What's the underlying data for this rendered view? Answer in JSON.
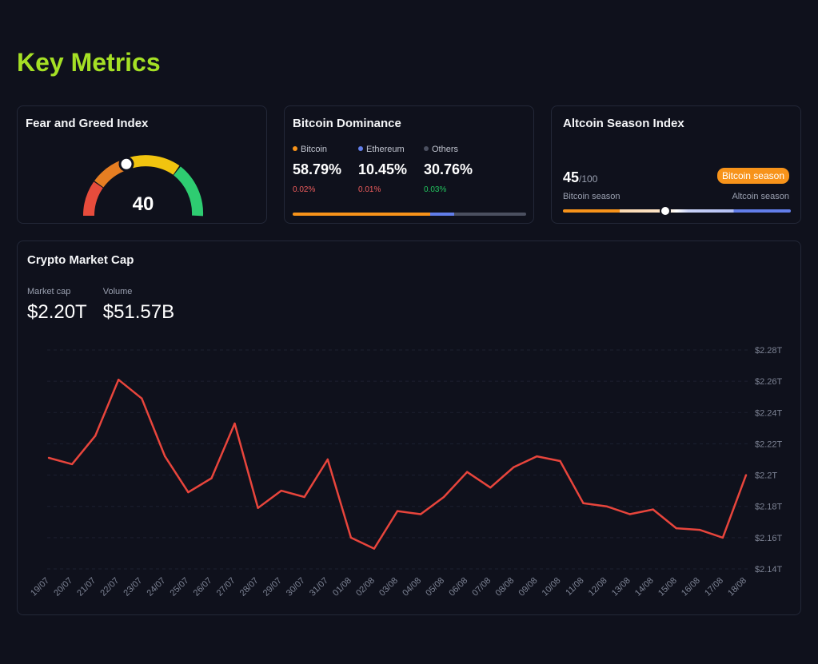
{
  "page": {
    "title": "Key Metrics"
  },
  "colors": {
    "accent": "#a5e025",
    "bitcoin": "#f7931a",
    "ethereum": "#627eea",
    "others": "#4b5060",
    "negative": "#f05d5d",
    "positive": "#22c55e",
    "line": "#e8453c"
  },
  "fear_greed": {
    "title": "Fear and Greed Index",
    "value": "40",
    "level": 40,
    "icons": [
      "gauge-icon",
      "needle-knob-icon"
    ]
  },
  "dominance": {
    "title": "Bitcoin Dominance",
    "items": [
      {
        "name": "Bitcoin",
        "value": "58.79%",
        "change": "0.02%",
        "trend": "down",
        "color": "#f7931a",
        "share": 58.79
      },
      {
        "name": "Ethereum",
        "value": "10.45%",
        "change": "0.01%",
        "trend": "down",
        "color": "#627eea",
        "share": 10.45
      },
      {
        "name": "Others",
        "value": "30.76%",
        "change": "0.03%",
        "trend": "up",
        "color": "#4b5060",
        "share": 30.76
      }
    ]
  },
  "altcoin": {
    "title": "Altcoin Season Index",
    "value": "45",
    "max": "/100",
    "badge": "Bitcoin season",
    "left_label": "Bitcoin season",
    "right_label": "Altcoin season",
    "level": 45
  },
  "market": {
    "title": "Crypto Market Cap",
    "stats": [
      {
        "label": "Market cap",
        "value": "$2.20T"
      },
      {
        "label": "Volume",
        "value": "$51.57B"
      }
    ]
  },
  "chart_data": {
    "type": "line",
    "title": "",
    "xlabel": "",
    "ylabel": "",
    "x": [
      "19/07",
      "20/07",
      "21/07",
      "22/07",
      "23/07",
      "24/07",
      "25/07",
      "26/07",
      "27/07",
      "28/07",
      "29/07",
      "30/07",
      "31/07",
      "01/08",
      "02/08",
      "03/08",
      "04/08",
      "05/08",
      "06/08",
      "07/08",
      "08/08",
      "09/08",
      "10/08",
      "11/08",
      "12/08",
      "13/08",
      "14/08",
      "15/08",
      "16/08",
      "17/08",
      "18/08"
    ],
    "series": [
      {
        "values": [
          2.211,
          2.207,
          2.225,
          2.261,
          2.249,
          2.212,
          2.189,
          2.198,
          2.233,
          2.179,
          2.19,
          2.186,
          2.21,
          2.16,
          2.153,
          2.177,
          2.175,
          2.186,
          2.202,
          2.192,
          2.205,
          2.212,
          2.209,
          2.182,
          2.18,
          2.175,
          2.178,
          2.166,
          2.165,
          2.16,
          2.2
        ]
      }
    ],
    "ylim": [
      2.14,
      2.28
    ],
    "yticks": [
      "$2.14T",
      "$2.16T",
      "$2.18T",
      "$2.2T",
      "$2.22T",
      "$2.24T",
      "$2.26T",
      "$2.28T"
    ],
    "y_axis_position": "right",
    "grid": true,
    "legend": "none"
  }
}
